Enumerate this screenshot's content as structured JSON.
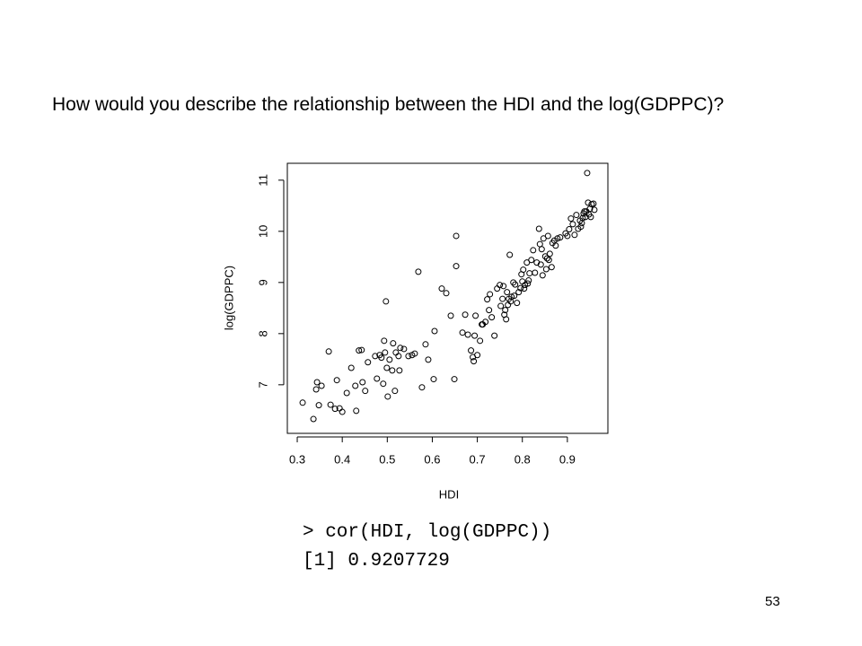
{
  "question": "How would you describe the relationship between the HDI and the log(GDPPC)?",
  "chart_data": {
    "type": "scatter",
    "xlabel": "HDI",
    "ylabel": "log(GDPPC)",
    "color": "#000000",
    "xlim": [
      0.278,
      0.99
    ],
    "ylim": [
      6.05,
      11.33
    ],
    "xticks": [
      0.3,
      0.4,
      0.5,
      0.6,
      0.7,
      0.8,
      0.9
    ],
    "yticks": [
      7,
      8,
      9,
      10,
      11
    ],
    "x": [
      0.312,
      0.336,
      0.342,
      0.344,
      0.354,
      0.348,
      0.37,
      0.374,
      0.384,
      0.388,
      0.394,
      0.4,
      0.41,
      0.42,
      0.429,
      0.431,
      0.437,
      0.443,
      0.445,
      0.451,
      0.457,
      0.473,
      0.477,
      0.483,
      0.487,
      0.491,
      0.493,
      0.495,
      0.497,
      0.499,
      0.501,
      0.505,
      0.511,
      0.513,
      0.517,
      0.519,
      0.525,
      0.527,
      0.529,
      0.537,
      0.547,
      0.555,
      0.561,
      0.569,
      0.577,
      0.585,
      0.591,
      0.603,
      0.605,
      0.621,
      0.631,
      0.641,
      0.649,
      0.653,
      0.653,
      0.667,
      0.673,
      0.679,
      0.686,
      0.69,
      0.692,
      0.694,
      0.696,
      0.7,
      0.706,
      0.71,
      0.712,
      0.718,
      0.722,
      0.726,
      0.728,
      0.732,
      0.738,
      0.744,
      0.75,
      0.752,
      0.756,
      0.758,
      0.76,
      0.762,
      0.764,
      0.766,
      0.768,
      0.77,
      0.772,
      0.774,
      0.776,
      0.78,
      0.782,
      0.784,
      0.788,
      0.792,
      0.796,
      0.798,
      0.8,
      0.802,
      0.804,
      0.806,
      0.81,
      0.812,
      0.814,
      0.816,
      0.82,
      0.824,
      0.828,
      0.832,
      0.837,
      0.839,
      0.841,
      0.843,
      0.845,
      0.847,
      0.851,
      0.853,
      0.855,
      0.857,
      0.859,
      0.861,
      0.865,
      0.867,
      0.871,
      0.874,
      0.878,
      0.884,
      0.896,
      0.9,
      0.904,
      0.908,
      0.912,
      0.916,
      0.92,
      0.924,
      0.928,
      0.93,
      0.932,
      0.934,
      0.936,
      0.938,
      0.94,
      0.942,
      0.944,
      0.946,
      0.948,
      0.95,
      0.952,
      0.954,
      0.958,
      0.96
    ],
    "y": [
      6.65,
      6.33,
      6.91,
      7.05,
      6.98,
      6.6,
      7.65,
      6.61,
      6.53,
      7.09,
      6.54,
      6.47,
      6.84,
      7.33,
      6.98,
      6.49,
      7.67,
      7.68,
      7.05,
      6.88,
      7.44,
      7.56,
      7.12,
      7.58,
      7.53,
      7.02,
      7.86,
      7.63,
      8.63,
      7.33,
      6.77,
      7.49,
      7.28,
      7.81,
      6.88,
      7.63,
      7.56,
      7.28,
      7.72,
      7.7,
      7.56,
      7.58,
      7.61,
      9.21,
      6.95,
      7.79,
      7.49,
      7.11,
      8.05,
      8.88,
      8.79,
      8.35,
      7.11,
      9.91,
      9.32,
      8.02,
      8.37,
      7.98,
      7.67,
      7.54,
      7.46,
      7.96,
      8.35,
      7.58,
      7.86,
      8.18,
      8.18,
      8.23,
      8.67,
      8.46,
      8.77,
      8.32,
      7.96,
      8.88,
      8.95,
      8.54,
      8.68,
      8.93,
      8.37,
      8.46,
      8.28,
      8.81,
      8.56,
      8.68,
      9.54,
      8.63,
      8.72,
      9.0,
      8.74,
      8.96,
      8.6,
      8.81,
      8.89,
      9.16,
      9.02,
      9.25,
      8.88,
      8.95,
      9.39,
      8.98,
      9.04,
      9.18,
      9.44,
      9.63,
      9.19,
      9.39,
      10.05,
      9.75,
      9.35,
      9.65,
      9.14,
      9.86,
      9.51,
      9.26,
      9.47,
      9.91,
      9.44,
      9.56,
      9.3,
      9.77,
      9.82,
      9.72,
      9.86,
      9.88,
      9.96,
      9.91,
      10.04,
      10.25,
      10.14,
      9.93,
      10.32,
      10.05,
      10.21,
      10.09,
      10.16,
      10.26,
      10.35,
      10.39,
      10.28,
      10.39,
      11.14,
      10.56,
      10.33,
      10.44,
      10.28,
      10.53,
      10.54,
      10.42
    ]
  },
  "console": [
    "> cor(HDI, log(GDPPC))",
    "[1] 0.9207729"
  ],
  "page_number": "53"
}
